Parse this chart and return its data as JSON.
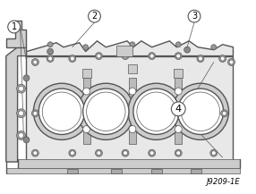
{
  "title": "",
  "caption": "J9209-1E",
  "background_color": "#ffffff",
  "line_color": "#555555",
  "label_1": "1",
  "label_2": "2",
  "label_3": "3",
  "label_4": "4",
  "figsize": [
    2.86,
    2.17
  ],
  "dpi": 100
}
